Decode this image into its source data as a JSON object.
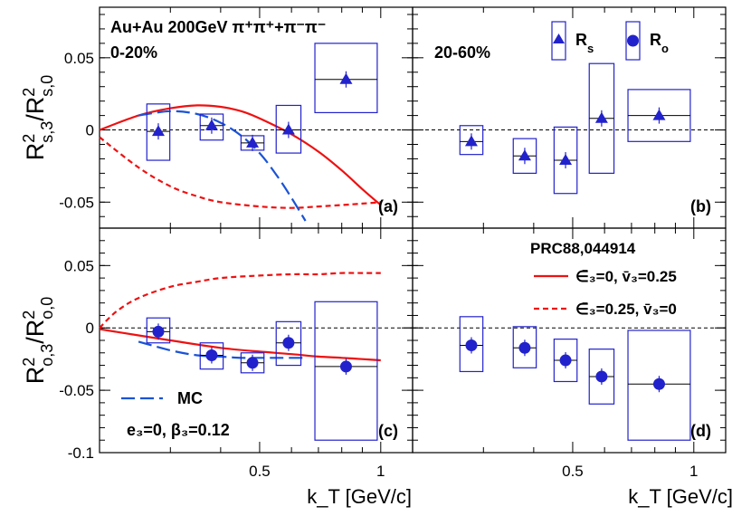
{
  "colors": {
    "data": "#2222cc",
    "model": "#ee1111",
    "mc": "#1a53d6",
    "axis": "#000000"
  },
  "chart_data": {
    "type": "scatter",
    "xlabel": "k_T [GeV/c]",
    "xlim": [
      0.2,
      1.2
    ],
    "x_ticks": [
      0.5,
      1
    ],
    "x_tick_labels": [
      "0.5",
      "1"
    ],
    "rows": [
      {
        "id": "top",
        "ylabel": {
          "main": "R",
          "sup1": "2",
          "sub1": "s,3",
          "slash": "/R",
          "sup2": "2",
          "sub2": "s,0"
        },
        "ylim": [
          -0.068,
          0.085
        ],
        "y_ticks": [
          -0.05,
          0,
          0.05
        ],
        "y_tick_labels": [
          "-0.05",
          "0",
          "0.05"
        ]
      },
      {
        "id": "bottom",
        "ylabel": {
          "main": "R",
          "sup1": "2",
          "sub1": "o,3",
          "slash": "/R",
          "sup2": "2",
          "sub2": "o,0"
        },
        "ylim": [
          -0.1,
          0.08
        ],
        "y_ticks": [
          -0.1,
          -0.05,
          0,
          0.05
        ],
        "y_tick_labels": [
          "-0.1",
          "-0.05",
          "0",
          "0.05"
        ]
      }
    ],
    "panels": [
      {
        "id": "a",
        "row": 0,
        "col": 0,
        "label": "(a)",
        "title_lines": [
          "Au+Au 200GeV π⁺π⁺+π⁻π⁻",
          "0-20%"
        ],
        "marker": "triangle",
        "points": [
          {
            "x": 0.28,
            "y": -0.001,
            "sys": [
              -0.021,
              0.018
            ]
          },
          {
            "x": 0.38,
            "y": 0.003,
            "sys": [
              -0.007,
              0.011
            ]
          },
          {
            "x": 0.48,
            "y": -0.009,
            "sys": [
              -0.014,
              -0.004
            ]
          },
          {
            "x": 0.59,
            "y": 0.0,
            "sys": [
              -0.016,
              0.017
            ]
          },
          {
            "x": 0.82,
            "y": 0.035,
            "sys": [
              0.012,
              0.06
            ]
          }
        ],
        "curves": [
          {
            "style": "solid",
            "color": "model",
            "x": [
              0.2,
              0.25,
              0.3,
              0.35,
              0.4,
              0.45,
              0.5,
              0.6,
              0.7,
              0.8,
              0.9,
              1.0
            ],
            "y": [
              0.0,
              0.01,
              0.015,
              0.017,
              0.016,
              0.013,
              0.008,
              -0.003,
              -0.015,
              -0.028,
              -0.041,
              -0.052
            ]
          },
          {
            "style": "dash",
            "color": "model",
            "x": [
              0.2,
              0.25,
              0.3,
              0.35,
              0.4,
              0.5,
              0.6,
              0.7,
              0.8,
              0.9,
              1.0
            ],
            "y": [
              -0.005,
              -0.026,
              -0.039,
              -0.046,
              -0.05,
              -0.053,
              -0.054,
              -0.053,
              -0.052,
              -0.051,
              -0.05
            ]
          },
          {
            "style": "longdash",
            "color": "mc",
            "x": [
              0.25,
              0.3,
              0.35,
              0.4,
              0.45,
              0.5,
              0.55,
              0.6,
              0.65
            ],
            "y": [
              0.01,
              0.013,
              0.011,
              0.005,
              -0.004,
              -0.016,
              -0.031,
              -0.047,
              -0.063
            ]
          }
        ]
      },
      {
        "id": "b",
        "row": 0,
        "col": 1,
        "label": "(b)",
        "title_lines": [
          "20-60%"
        ],
        "marker": "triangle",
        "points": [
          {
            "x": 0.28,
            "y": -0.008,
            "sys": [
              -0.017,
              0.003
            ]
          },
          {
            "x": 0.38,
            "y": -0.018,
            "sys": [
              -0.03,
              -0.006
            ]
          },
          {
            "x": 0.48,
            "y": -0.021,
            "sys": [
              -0.044,
              0.002
            ]
          },
          {
            "x": 0.59,
            "y": 0.008,
            "sys": [
              -0.03,
              0.046
            ]
          },
          {
            "x": 0.82,
            "y": 0.01,
            "sys": [
              -0.008,
              0.028
            ]
          }
        ],
        "curves": []
      },
      {
        "id": "c",
        "row": 1,
        "col": 0,
        "label": "(c)",
        "title_lines": [],
        "marker": "circle",
        "points": [
          {
            "x": 0.28,
            "y": -0.003,
            "sys": [
              -0.012,
              0.008
            ]
          },
          {
            "x": 0.38,
            "y": -0.022,
            "sys": [
              -0.033,
              -0.012
            ]
          },
          {
            "x": 0.48,
            "y": -0.028,
            "sys": [
              -0.036,
              -0.02
            ]
          },
          {
            "x": 0.59,
            "y": -0.012,
            "sys": [
              -0.03,
              0.005
            ]
          },
          {
            "x": 0.82,
            "y": -0.031,
            "sys": [
              -0.09,
              0.021
            ]
          }
        ],
        "curves": [
          {
            "style": "solid",
            "color": "model",
            "x": [
              0.2,
              0.3,
              0.4,
              0.5,
              0.6,
              0.7,
              0.8,
              0.9,
              1.0
            ],
            "y": [
              -0.001,
              -0.01,
              -0.016,
              -0.019,
              -0.021,
              -0.023,
              -0.024,
              -0.025,
              -0.026
            ]
          },
          {
            "style": "dash",
            "color": "model",
            "x": [
              0.2,
              0.22,
              0.25,
              0.3,
              0.35,
              0.4,
              0.5,
              0.6,
              0.7,
              0.8,
              0.9,
              1.0
            ],
            "y": [
              0.0,
              0.013,
              0.024,
              0.033,
              0.037,
              0.04,
              0.042,
              0.043,
              0.043,
              0.044,
              0.044,
              0.044
            ]
          },
          {
            "style": "longdash",
            "color": "mc",
            "x": [
              0.25,
              0.3,
              0.35,
              0.4,
              0.45,
              0.5,
              0.55,
              0.6,
              0.65
            ],
            "y": [
              -0.011,
              -0.018,
              -0.022,
              -0.023,
              -0.024,
              -0.024,
              -0.024,
              -0.024,
              -0.024
            ]
          }
        ],
        "legend": {
          "mc_label": "MC",
          "params_text": "e₃=0, β₃=0.12"
        }
      },
      {
        "id": "d",
        "row": 1,
        "col": 1,
        "label": "(d)",
        "title_lines": [],
        "marker": "circle",
        "points": [
          {
            "x": 0.28,
            "y": -0.014,
            "sys": [
              -0.035,
              0.009
            ]
          },
          {
            "x": 0.38,
            "y": -0.016,
            "sys": [
              -0.032,
              0.001
            ]
          },
          {
            "x": 0.48,
            "y": -0.026,
            "sys": [
              -0.043,
              -0.009
            ]
          },
          {
            "x": 0.59,
            "y": -0.039,
            "sys": [
              -0.061,
              -0.017
            ]
          },
          {
            "x": 0.82,
            "y": -0.045,
            "sys": [
              -0.09,
              -0.002
            ]
          }
        ],
        "curves": [],
        "legend": {
          "title": "PRC88,044914",
          "entries": [
            {
              "style": "solid",
              "label": "∈̄₃=0, v̄₃=0.25"
            },
            {
              "style": "dash",
              "label": "∈̄₃=0.25, v̄₃=0"
            }
          ]
        }
      }
    ],
    "marker_legend": [
      {
        "marker": "triangle",
        "label_main": "R",
        "label_sub": "s"
      },
      {
        "marker": "circle",
        "label_main": "R",
        "label_sub": "o"
      }
    ]
  }
}
